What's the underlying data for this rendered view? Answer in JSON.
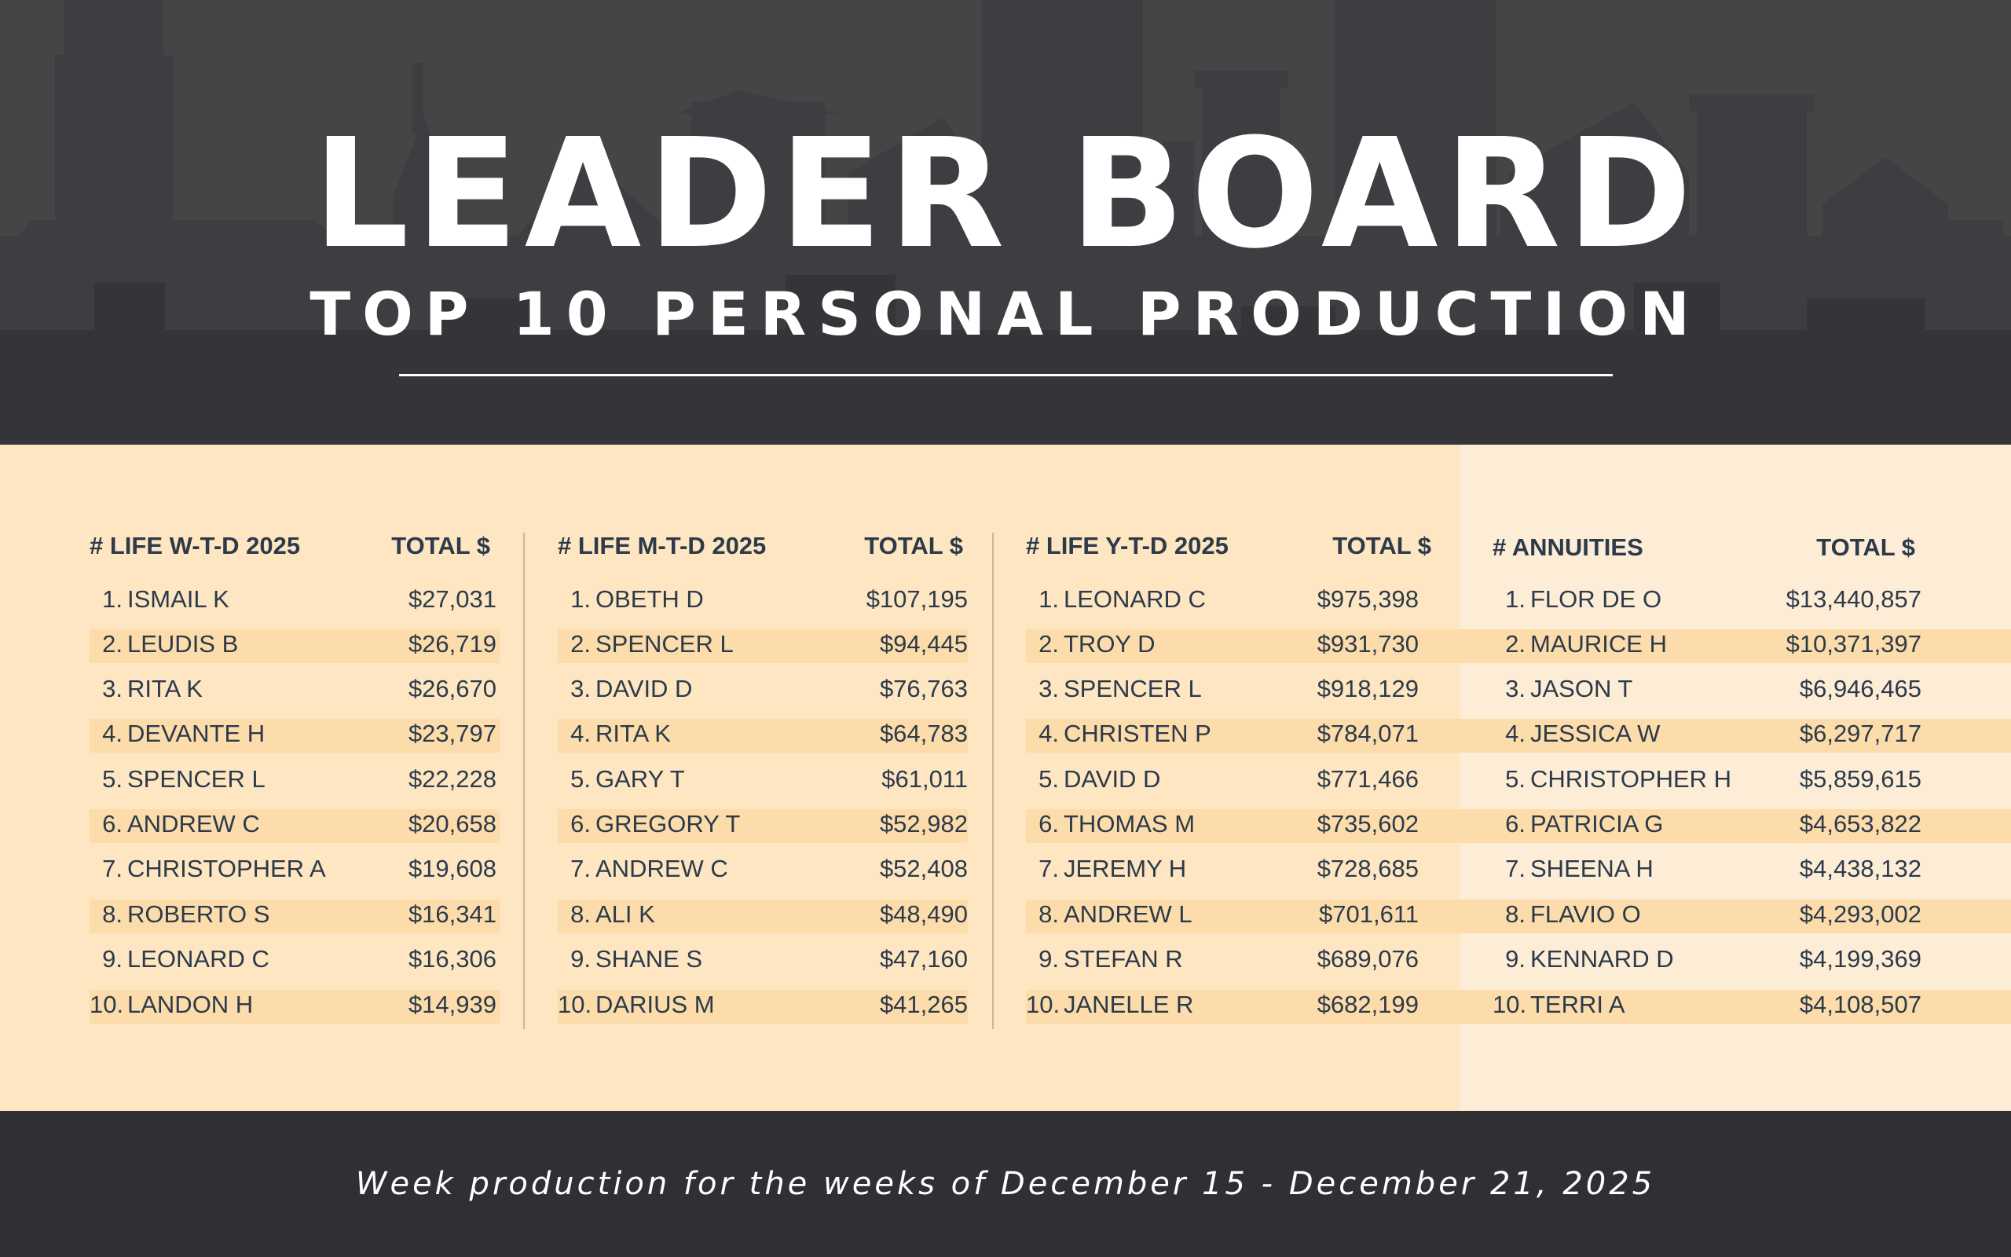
{
  "header": {
    "title": "LEADER BOARD",
    "subtitle": "TOP 10 PERSONAL PRODUCTION"
  },
  "columns": [
    {
      "category": "# LIFE W-T-D 2025",
      "total_label": "TOTAL $",
      "rows": [
        {
          "rank": "1.",
          "name": "ISMAIL K",
          "amount": "$27,031"
        },
        {
          "rank": "2.",
          "name": "LEUDIS B",
          "amount": "$26,719"
        },
        {
          "rank": "3.",
          "name": "RITA K",
          "amount": "$26,670"
        },
        {
          "rank": "4.",
          "name": "DEVANTE H",
          "amount": "$23,797"
        },
        {
          "rank": "5.",
          "name": "SPENCER L",
          "amount": "$22,228"
        },
        {
          "rank": "6.",
          "name": "ANDREW C",
          "amount": "$20,658"
        },
        {
          "rank": "7.",
          "name": "CHRISTOPHER A",
          "amount": "$19,608"
        },
        {
          "rank": "8.",
          "name": "ROBERTO S",
          "amount": "$16,341"
        },
        {
          "rank": "9.",
          "name": "LEONARD C",
          "amount": "$16,306"
        },
        {
          "rank": "10.",
          "name": "LANDON H",
          "amount": "$14,939"
        }
      ]
    },
    {
      "category": "# LIFE M-T-D 2025",
      "total_label": "TOTAL $",
      "rows": [
        {
          "rank": "1.",
          "name": "OBETH D",
          "amount": "$107,195"
        },
        {
          "rank": "2.",
          "name": "SPENCER L",
          "amount": "$94,445"
        },
        {
          "rank": "3.",
          "name": "DAVID D",
          "amount": "$76,763"
        },
        {
          "rank": "4.",
          "name": "RITA K",
          "amount": "$64,783"
        },
        {
          "rank": "5.",
          "name": "GARY T",
          "amount": "$61,011"
        },
        {
          "rank": "6.",
          "name": "GREGORY T",
          "amount": "$52,982"
        },
        {
          "rank": "7.",
          "name": "ANDREW C",
          "amount": "$52,408"
        },
        {
          "rank": "8.",
          "name": "ALI K",
          "amount": "$48,490"
        },
        {
          "rank": "9.",
          "name": "SHANE S",
          "amount": "$47,160"
        },
        {
          "rank": "10.",
          "name": "DARIUS M",
          "amount": "$41,265"
        }
      ]
    },
    {
      "category": "# LIFE Y-T-D 2025",
      "total_label": "TOTAL $",
      "rows": [
        {
          "rank": "1.",
          "name": "LEONARD C",
          "amount": "$975,398"
        },
        {
          "rank": "2.",
          "name": "TROY D",
          "amount": "$931,730"
        },
        {
          "rank": "3.",
          "name": "SPENCER L",
          "amount": "$918,129"
        },
        {
          "rank": "4.",
          "name": "CHRISTEN P",
          "amount": "$784,071"
        },
        {
          "rank": "5.",
          "name": "DAVID D",
          "amount": "$771,466"
        },
        {
          "rank": "6.",
          "name": "THOMAS M",
          "amount": "$735,602"
        },
        {
          "rank": "7.",
          "name": "JEREMY H",
          "amount": "$728,685"
        },
        {
          "rank": "8.",
          "name": "ANDREW L",
          "amount": "$701,611"
        },
        {
          "rank": "9.",
          "name": "STEFAN R",
          "amount": "$689,076"
        },
        {
          "rank": "10.",
          "name": "JANELLE R",
          "amount": "$682,199"
        }
      ]
    },
    {
      "category": "# ANNUITIES",
      "total_label": "TOTAL $",
      "rows": [
        {
          "rank": "1.",
          "name": "FLOR DE O",
          "amount": "$13,440,857"
        },
        {
          "rank": "2.",
          "name": "MAURICE H",
          "amount": "$10,371,397"
        },
        {
          "rank": "3.",
          "name": "JASON T",
          "amount": "$6,946,465"
        },
        {
          "rank": "4.",
          "name": "JESSICA W",
          "amount": "$6,297,717"
        },
        {
          "rank": "5.",
          "name": "CHRISTOPHER H",
          "amount": "$5,859,615"
        },
        {
          "rank": "6.",
          "name": "PATRICIA G",
          "amount": "$4,653,822"
        },
        {
          "rank": "7.",
          "name": "SHEENA H",
          "amount": "$4,438,132"
        },
        {
          "rank": "8.",
          "name": "FLAVIO O",
          "amount": "$4,293,002"
        },
        {
          "rank": "9.",
          "name": "KENNARD D",
          "amount": "$4,199,369"
        },
        {
          "rank": "10.",
          "name": "TERRI A",
          "amount": "$4,108,507"
        }
      ]
    }
  ],
  "footer": {
    "text": "Week production for the weeks of December 15 - December 21, 2025"
  },
  "colors": {
    "header_bg": "#454545",
    "skyline": "#37383b",
    "board_bg": "#fde6c1",
    "stripe": "#fcdcaa",
    "annuities_bg": "#fdedd6",
    "text": "#2c3a4a",
    "footer_bg": "#2f3033"
  }
}
